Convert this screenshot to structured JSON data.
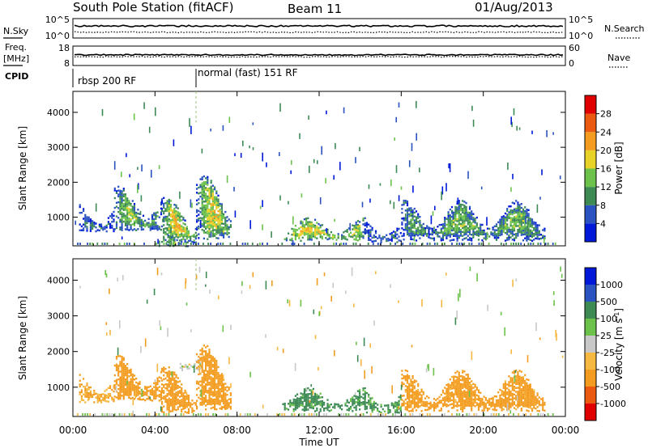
{
  "header": {
    "title": "South Pole Station (fitACF)",
    "beam": "Beam 11",
    "date": "01/Aug/2013"
  },
  "strips": {
    "nsky_label": "N.Sky",
    "nsky_ticks": [
      "10^5",
      "10^0"
    ],
    "nsearch_label": "N.Search",
    "nsearch_ticks": [
      "10^5",
      "10^0"
    ],
    "freq_label_1": "Freq.",
    "freq_label_2": "[MHz]",
    "freq_ticks": [
      "18",
      "8"
    ],
    "nave_label": "Nave",
    "nave_ticks": [
      "60",
      "0"
    ],
    "cpid_label": "CPID",
    "cpid_segments": [
      {
        "label": "rbsp 200 RF",
        "start_hour": 0
      },
      {
        "label": "normal (fast) 151 RF",
        "start_hour": 6
      }
    ]
  },
  "colors": {
    "power": [
      "#0018d8",
      "#2a52c0",
      "#3d8a55",
      "#6cc24a",
      "#e8d228",
      "#f39c20",
      "#ec5a12",
      "#e00000"
    ],
    "velocity": [
      "#e00000",
      "#ec5a12",
      "#f39c20",
      "#f5b942",
      "#c8c8c8",
      "#6cc24a",
      "#3d8a55",
      "#2a52c0",
      "#0018d8"
    ]
  },
  "chart_data": [
    {
      "type": "heatmap",
      "name": "power",
      "ylabel": "Slant Range [km]",
      "xlabel": "",
      "xlim": [
        0,
        24
      ],
      "ylim": [
        180,
        4600
      ],
      "x_ticks": [
        0,
        4,
        8,
        12,
        16,
        20,
        24
      ],
      "y_ticks": [
        1000,
        2000,
        3000,
        4000
      ],
      "colorbar": {
        "label": "Power [dB]",
        "range": [
          0,
          32
        ],
        "ticks": [
          "28",
          "24",
          "20",
          "16",
          "12",
          "8",
          "4"
        ]
      },
      "echo_regions": [
        {
          "t_start": 0.3,
          "t_end": 2.0,
          "r_min": 600,
          "r_max": 1500,
          "value": 10
        },
        {
          "t_start": 2.0,
          "t_end": 4.3,
          "r_min": 650,
          "r_max": 1900,
          "value": 16
        },
        {
          "t_start": 4.3,
          "t_end": 6.0,
          "r_min": 300,
          "r_max": 1600,
          "value": 20
        },
        {
          "t_start": 4.6,
          "t_end": 5.6,
          "r_min": 180,
          "r_max": 600,
          "value": 28
        },
        {
          "t_start": 6.0,
          "t_end": 7.7,
          "r_min": 400,
          "r_max": 2200,
          "value": 18
        },
        {
          "t_start": 10.2,
          "t_end": 14.2,
          "r_min": 350,
          "r_max": 1000,
          "value": 24
        },
        {
          "t_start": 14.2,
          "t_end": 16.0,
          "r_min": 300,
          "r_max": 1000,
          "value": 12
        },
        {
          "t_start": 16.0,
          "t_end": 23.0,
          "r_min": 350,
          "r_max": 1500,
          "value": 13
        }
      ]
    },
    {
      "type": "heatmap",
      "name": "velocity",
      "ylabel": "Slant Range [km]",
      "xlabel": "Time UT",
      "xlim": [
        0,
        24
      ],
      "ylim": [
        180,
        4600
      ],
      "x_ticks": [
        0,
        4,
        8,
        12,
        16,
        20,
        24
      ],
      "x_tick_labels": [
        "00:00",
        "04:00",
        "08:00",
        "12:00",
        "16:00",
        "20:00",
        "00:00"
      ],
      "y_ticks": [
        1000,
        2000,
        3000,
        4000
      ],
      "colorbar": {
        "label": "Velocity [m s",
        "label_sup": "-1",
        "label_end": "]",
        "range": [
          -1000,
          1000
        ],
        "ticks": [
          "1000",
          "500",
          "100",
          "25",
          "-25",
          "-100",
          "-500",
          "-1000"
        ]
      },
      "echo_regions": [
        {
          "t_start": 0.3,
          "t_end": 2.0,
          "r_min": 600,
          "r_max": 1500,
          "value": -100
        },
        {
          "t_start": 2.0,
          "t_end": 4.3,
          "r_min": 650,
          "r_max": 1900,
          "value": -300
        },
        {
          "t_start": 4.3,
          "t_end": 6.0,
          "r_min": 300,
          "r_max": 1600,
          "value": -200
        },
        {
          "t_start": 5.2,
          "t_end": 6.4,
          "r_min": 1500,
          "r_max": 2000,
          "value": 0
        },
        {
          "t_start": 6.0,
          "t_end": 7.7,
          "r_min": 400,
          "r_max": 2200,
          "value": -300
        },
        {
          "t_start": 10.2,
          "t_end": 14.2,
          "r_min": 350,
          "r_max": 1000,
          "value": 200
        },
        {
          "t_start": 14.2,
          "t_end": 16.0,
          "r_min": 300,
          "r_max": 1000,
          "value": 150
        },
        {
          "t_start": 16.0,
          "t_end": 23.0,
          "r_min": 350,
          "r_max": 1500,
          "value": -150
        }
      ]
    }
  ]
}
